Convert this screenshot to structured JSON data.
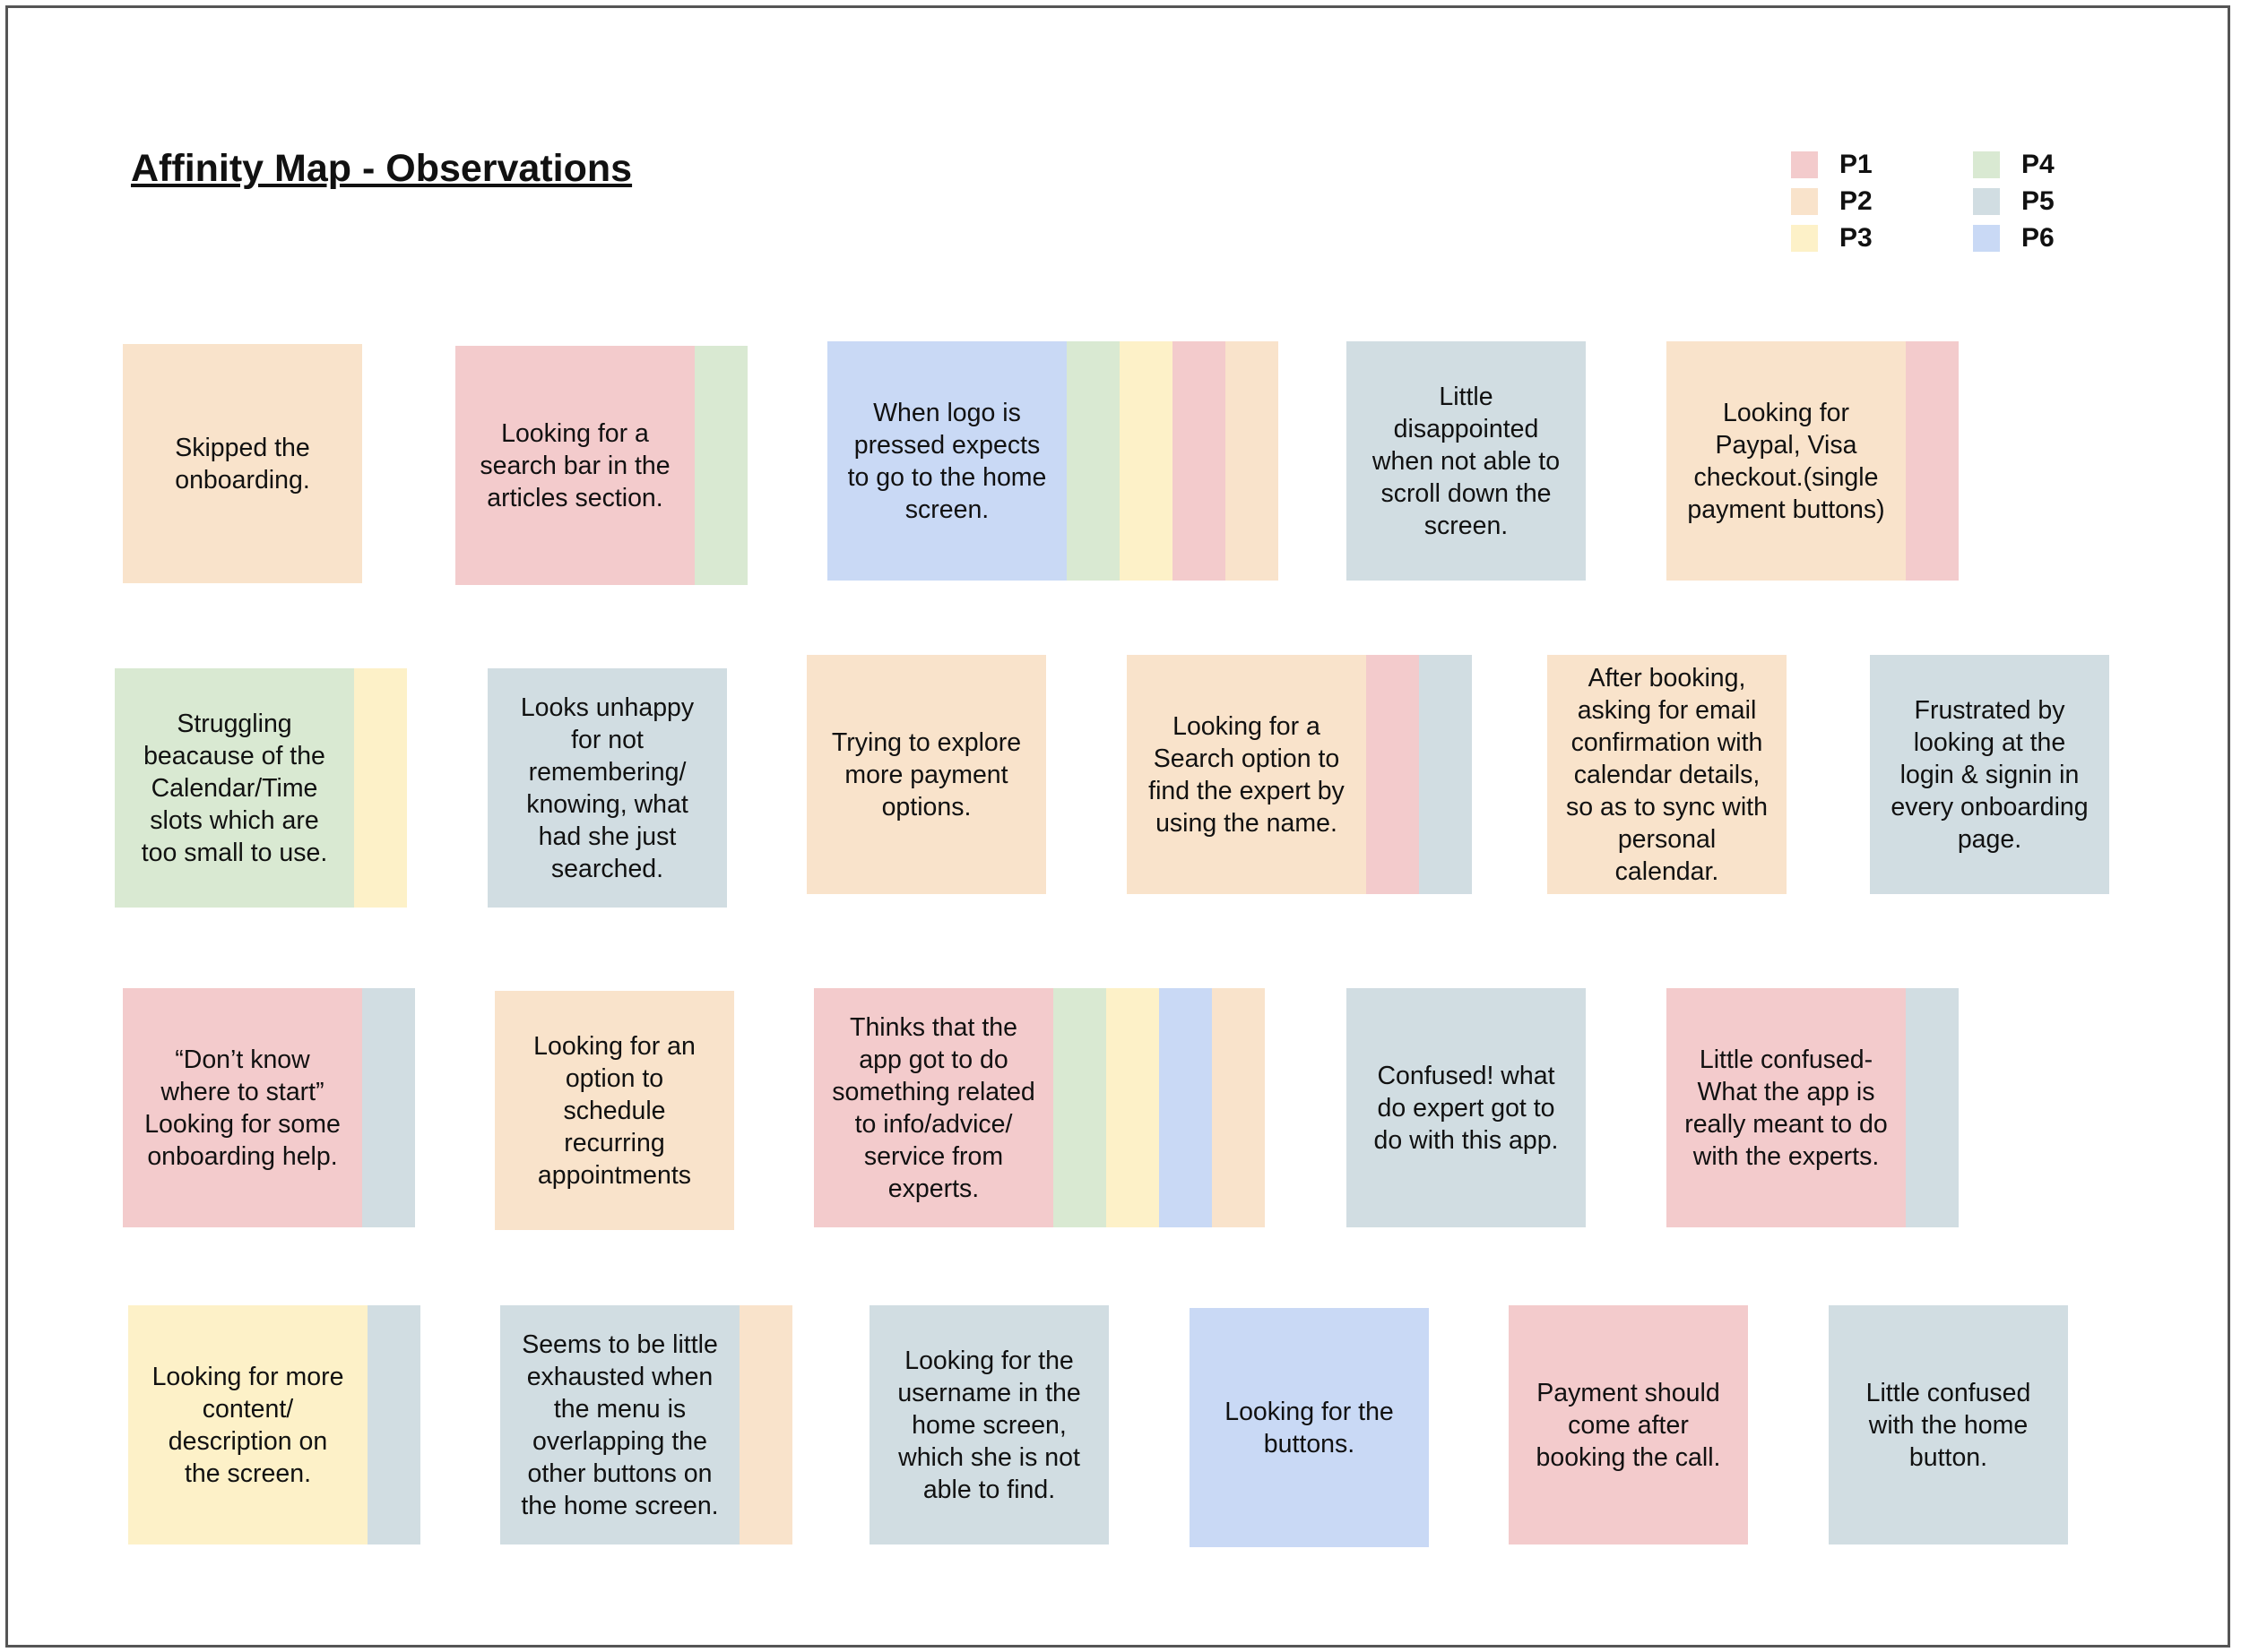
{
  "title": "Affinity Map - Observations",
  "colors": {
    "P1": "#f3cbcc",
    "P2": "#f9e3cb",
    "P3": "#fdf1c8",
    "P4": "#d9e9d2",
    "P5": "#d1dde2",
    "P6": "#c9d9f5"
  },
  "legend": [
    {
      "label": "P1",
      "participant": "P1"
    },
    {
      "label": "P2",
      "participant": "P2"
    },
    {
      "label": "P3",
      "participant": "P3"
    },
    {
      "label": "P4",
      "participant": "P4"
    },
    {
      "label": "P5",
      "participant": "P5"
    },
    {
      "label": "P6",
      "participant": "P6"
    }
  ],
  "notes": [
    {
      "text": "Skipped the\nonboarding.",
      "main": "P2",
      "strips": []
    },
    {
      "text": "Looking for a\nsearch bar in the\narticles section.",
      "main": "P1",
      "strips": [
        "P4"
      ]
    },
    {
      "text": "When logo is\npressed expects\nto go to the home\nscreen.",
      "main": "P6",
      "strips": [
        "P4",
        "P3",
        "P1",
        "P2"
      ]
    },
    {
      "text": "Little\ndisappointed\nwhen not able to\nscroll down the\nscreen.",
      "main": "P5",
      "strips": []
    },
    {
      "text": "Looking for\nPaypal, Visa\ncheckout.(single\npayment buttons)",
      "main": "P2",
      "strips": [
        "P1"
      ]
    },
    {
      "text": "Struggling\nbeacause of the\nCalendar/Time\nslots which are\ntoo small to use.",
      "main": "P4",
      "strips": [
        "P3"
      ]
    },
    {
      "text": "Looks unhappy\nfor not\nremembering/\nknowing, what\nhad she just\nsearched.",
      "main": "P5",
      "strips": []
    },
    {
      "text": "Trying to explore\nmore payment\noptions.",
      "main": "P2",
      "strips": []
    },
    {
      "text": "Looking for a\nSearch option to\nfind the expert by\nusing the name.",
      "main": "P2",
      "strips": [
        "P1",
        "P5"
      ]
    },
    {
      "text": "After booking,\nasking for email\nconfirmation with\ncalendar details,\nso as to sync with\npersonal\ncalendar.",
      "main": "P2",
      "strips": []
    },
    {
      "text": "Frustrated by\nlooking at the\nlogin & signin in\nevery onboarding\npage.",
      "main": "P5",
      "strips": []
    },
    {
      "text": "“Don’t know\nwhere to start”\nLooking for some\nonboarding help.",
      "main": "P1",
      "strips": [
        "P5"
      ]
    },
    {
      "text": "Looking for an\noption to\nschedule\nrecurring\nappointments",
      "main": "P2",
      "strips": []
    },
    {
      "text": "Thinks that the\napp got to do\nsomething related\nto info/advice/\nservice from\nexperts.",
      "main": "P1",
      "strips": [
        "P4",
        "P3",
        "P6",
        "P2"
      ]
    },
    {
      "text": "Confused! what\ndo expert got to\ndo with this app.",
      "main": "P5",
      "strips": []
    },
    {
      "text": "Little confused-\nWhat the app is\nreally meant to do\nwith the experts.",
      "main": "P1",
      "strips": [
        "P5"
      ]
    },
    {
      "text": "Looking for more\ncontent/\ndescription on\nthe screen.",
      "main": "P3",
      "strips": [
        "P5"
      ]
    },
    {
      "text": "Seems to be little\nexhausted when\nthe menu is\noverlapping the\nother buttons on\nthe home screen.",
      "main": "P5",
      "strips": [
        "P2"
      ]
    },
    {
      "text": "Looking for the\nusername in the\nhome screen,\nwhich she is not\nable to find.",
      "main": "P5",
      "strips": []
    },
    {
      "text": "Looking for the\nbuttons.",
      "main": "P6",
      "strips": []
    },
    {
      "text": "Payment should\ncome after\nbooking the call.",
      "main": "P1",
      "strips": []
    },
    {
      "text": "Little confused\nwith the home\nbutton.",
      "main": "P5",
      "strips": []
    }
  ]
}
